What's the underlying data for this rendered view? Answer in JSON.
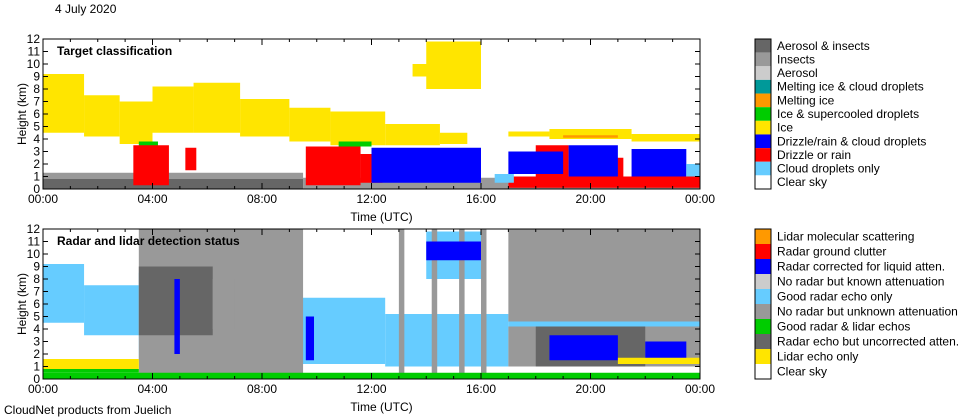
{
  "date_title": "4 July 2020",
  "footer": "CloudNet products from Juelich",
  "chart_data": [
    {
      "type": "heatmap",
      "title": "Target classification",
      "xlabel": "Time (UTC)",
      "ylabel": "Height (km)",
      "xlim": [
        0,
        24
      ],
      "ylim": [
        0,
        12
      ],
      "x_tick_labels": [
        "00:00",
        "04:00",
        "08:00",
        "12:00",
        "16:00",
        "20:00",
        "00:00"
      ],
      "y_tick_labels": [
        "0",
        "1",
        "2",
        "3",
        "4",
        "5",
        "6",
        "7",
        "8",
        "9",
        "10",
        "11",
        "12"
      ],
      "legend": [
        {
          "label": "Aerosol & insects",
          "color": "#666666"
        },
        {
          "label": "Insects",
          "color": "#999999"
        },
        {
          "label": "Aerosol",
          "color": "#cccccc"
        },
        {
          "label": "Melting ice & cloud droplets",
          "color": "#009999"
        },
        {
          "label": "Melting ice",
          "color": "#ff9900"
        },
        {
          "label": "Ice & supercooled droplets",
          "color": "#00cc00"
        },
        {
          "label": "Ice",
          "color": "#ffe500"
        },
        {
          "label": "Drizzle/rain & cloud droplets",
          "color": "#0000ff"
        },
        {
          "label": "Drizzle or rain",
          "color": "#ff0000"
        },
        {
          "label": "Cloud droplets only",
          "color": "#66ccff"
        },
        {
          "label": "Clear sky",
          "color": "#ffffff"
        }
      ],
      "regions_hours_km_class": [
        [
          0,
          9.5,
          0,
          1.3,
          1
        ],
        [
          0,
          9.5,
          0,
          0.8,
          0
        ],
        [
          9.5,
          17,
          0,
          0.9,
          1
        ],
        [
          17,
          24,
          0,
          0.5,
          1
        ],
        [
          0,
          1.5,
          4.5,
          9.2,
          6
        ],
        [
          1.5,
          2.8,
          4.2,
          7.5,
          6
        ],
        [
          2.8,
          4,
          3.6,
          7,
          6
        ],
        [
          4,
          5.5,
          4.5,
          8.2,
          6
        ],
        [
          5.5,
          7.2,
          4.5,
          8.5,
          6
        ],
        [
          7.2,
          9,
          4.2,
          7.2,
          6
        ],
        [
          9,
          10.5,
          3.8,
          6.5,
          6
        ],
        [
          10.5,
          12.5,
          3.5,
          6.2,
          6
        ],
        [
          12.5,
          14.5,
          3.5,
          5.2,
          6
        ],
        [
          14.5,
          15.5,
          3.6,
          4.5,
          6
        ],
        [
          14,
          16,
          8,
          11.8,
          6
        ],
        [
          13.5,
          14.5,
          9,
          10,
          6
        ],
        [
          17,
          18.5,
          4.2,
          4.6,
          6
        ],
        [
          18.5,
          21.5,
          4.0,
          4.8,
          6
        ],
        [
          21.5,
          24,
          3.8,
          4.4,
          6
        ],
        [
          3.5,
          4.2,
          3.3,
          3.8,
          5
        ],
        [
          10.8,
          12,
          3.4,
          3.8,
          5
        ],
        [
          19,
          21,
          4.1,
          4.3,
          4
        ],
        [
          3.3,
          4.6,
          0.3,
          3.5,
          8
        ],
        [
          5.2,
          5.6,
          1.5,
          3.3,
          8
        ],
        [
          9.6,
          11.6,
          0.3,
          3.4,
          8
        ],
        [
          11.6,
          12.4,
          0.5,
          2.8,
          8
        ],
        [
          17,
          24,
          0.1,
          1.0,
          8
        ],
        [
          18,
          19.2,
          1,
          3.5,
          8
        ],
        [
          20.5,
          21.2,
          0.8,
          2.5,
          8
        ],
        [
          12,
          16,
          0.5,
          3.3,
          7
        ],
        [
          17,
          19,
          1.2,
          3.0,
          7
        ],
        [
          19.2,
          21,
          1.0,
          3.5,
          7
        ],
        [
          21.5,
          23.5,
          1.0,
          3.2,
          7
        ],
        [
          16.5,
          17.2,
          0.5,
          1.2,
          9
        ],
        [
          23.5,
          24,
          1.0,
          2.0,
          9
        ]
      ]
    },
    {
      "type": "heatmap",
      "title": "Radar and lidar detection status",
      "xlabel": "Time (UTC)",
      "ylabel": "Height (km)",
      "xlim": [
        0,
        24
      ],
      "ylim": [
        0,
        12
      ],
      "x_tick_labels": [
        "00:00",
        "04:00",
        "08:00",
        "12:00",
        "16:00",
        "20:00",
        "00:00"
      ],
      "y_tick_labels": [
        "0",
        "1",
        "2",
        "3",
        "4",
        "5",
        "6",
        "7",
        "8",
        "9",
        "10",
        "11",
        "12"
      ],
      "legend": [
        {
          "label": "Lidar molecular scattering",
          "color": "#ff9900"
        },
        {
          "label": "Radar ground clutter",
          "color": "#ff0000"
        },
        {
          "label": "Radar corrected for liquid atten.",
          "color": "#0000ff"
        },
        {
          "label": "No radar but known attenuation",
          "color": "#cccccc"
        },
        {
          "label": "Good radar echo only",
          "color": "#66ccff"
        },
        {
          "label": "No radar but unknown attenuation",
          "color": "#999999"
        },
        {
          "label": "Good radar & lidar echos",
          "color": "#00cc00"
        },
        {
          "label": "Radar echo but uncorrected atten.",
          "color": "#666666"
        },
        {
          "label": "Lidar echo only",
          "color": "#ffe500"
        },
        {
          "label": "Clear sky",
          "color": "#ffffff"
        }
      ],
      "regions_hours_km_class": [
        [
          0,
          1.5,
          4.5,
          9.2,
          4
        ],
        [
          1.5,
          3.5,
          3.5,
          7.5,
          4
        ],
        [
          3.5,
          9,
          1.5,
          8.5,
          4
        ],
        [
          9,
          12.5,
          1.2,
          6.5,
          4
        ],
        [
          12.5,
          17,
          1.0,
          5.2,
          4
        ],
        [
          14,
          16,
          8,
          11.8,
          4
        ],
        [
          17,
          24,
          3.8,
          4.6,
          4
        ],
        [
          3.5,
          9.5,
          0,
          12,
          5
        ],
        [
          3.5,
          6.2,
          3.5,
          9,
          7
        ],
        [
          6.2,
          7,
          4,
          8,
          5
        ],
        [
          13,
          13.2,
          0,
          12,
          5
        ],
        [
          14.2,
          14.4,
          0,
          12,
          5
        ],
        [
          15.2,
          15.4,
          0,
          12,
          5
        ],
        [
          16,
          16.2,
          0,
          12,
          5
        ],
        [
          17,
          24,
          4.6,
          12,
          5
        ],
        [
          17,
          24,
          1,
          4.2,
          5
        ],
        [
          18,
          22,
          1,
          4.2,
          7
        ],
        [
          18.5,
          21,
          1.5,
          3.5,
          2
        ],
        [
          22,
          23.5,
          1.5,
          3,
          2
        ],
        [
          14,
          16,
          9.5,
          11,
          2
        ],
        [
          4.8,
          5.0,
          2,
          8,
          2
        ],
        [
          9.6,
          9.9,
          1.5,
          5,
          2
        ],
        [
          0,
          3.5,
          0.6,
          1.6,
          8
        ],
        [
          0,
          24,
          0,
          0.5,
          6
        ],
        [
          0,
          3.5,
          0.5,
          0.8,
          6
        ],
        [
          21,
          24,
          1.2,
          1.7,
          8
        ]
      ]
    }
  ]
}
